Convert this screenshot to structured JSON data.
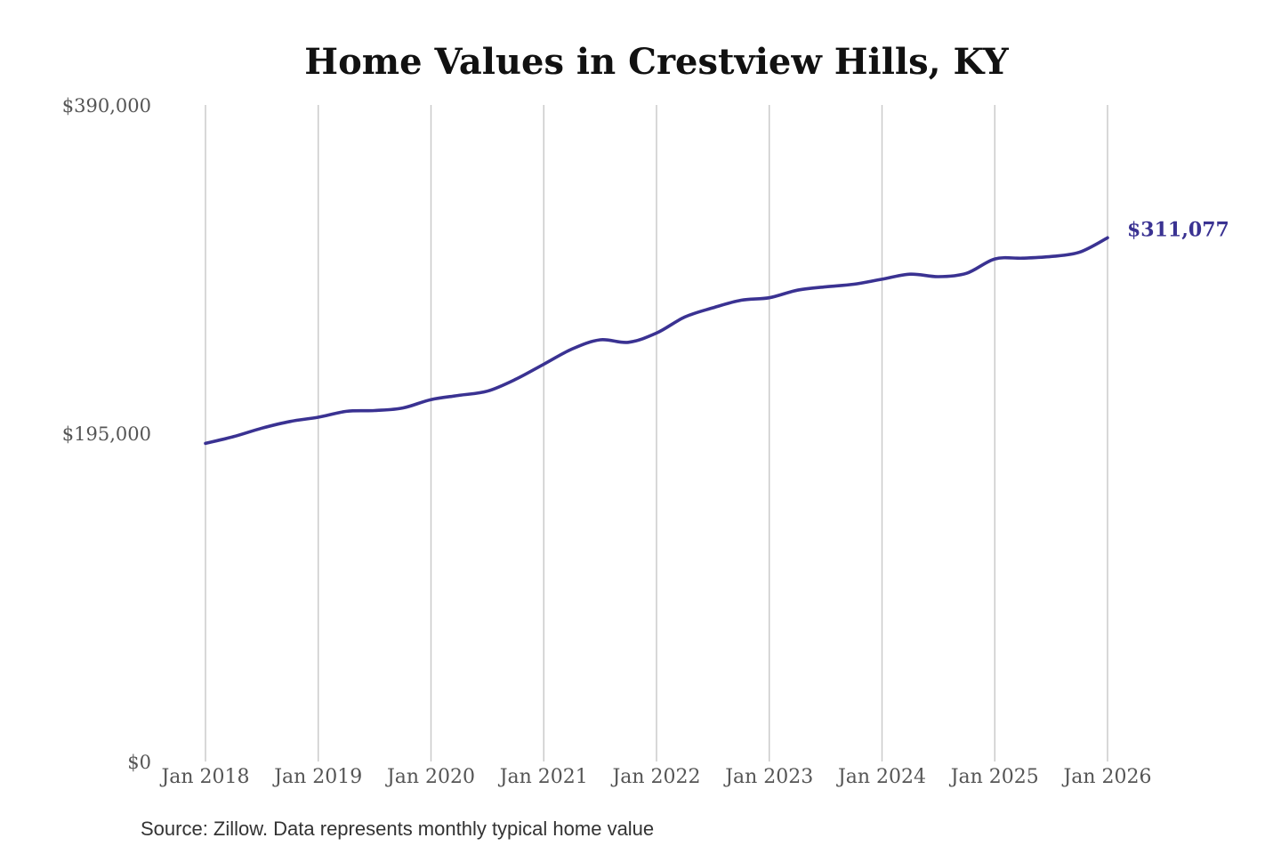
{
  "colors": {
    "line": "#3a3292",
    "grid": "#c8c8c8",
    "text": "#555555"
  },
  "chart_data": {
    "type": "line",
    "title": "Home Values in Crestview Hills, KY",
    "xlabel": "",
    "ylabel": "",
    "y_ticks": [
      {
        "value": 0,
        "label": "$0"
      },
      {
        "value": 195000,
        "label": "$195,000"
      },
      {
        "value": 390000,
        "label": "$390,000"
      }
    ],
    "ylim": [
      0,
      390000
    ],
    "x_ticks": [
      {
        "value": "2018-01",
        "label": "Jan 2018"
      },
      {
        "value": "2019-01",
        "label": "Jan 2019"
      },
      {
        "value": "2020-01",
        "label": "Jan 2020"
      },
      {
        "value": "2021-01",
        "label": "Jan 2021"
      },
      {
        "value": "2022-01",
        "label": "Jan 2022"
      },
      {
        "value": "2023-01",
        "label": "Jan 2023"
      },
      {
        "value": "2024-01",
        "label": "Jan 2024"
      },
      {
        "value": "2025-01",
        "label": "Jan 2025"
      },
      {
        "value": "2026-01",
        "label": "Jan 2026"
      }
    ],
    "xlim": [
      "2018-01",
      "2026-01"
    ],
    "grid": {
      "vertical": true,
      "horizontal": false
    },
    "series": [
      {
        "x": [
          "2018-01",
          "2018-04",
          "2018-07",
          "2018-10",
          "2019-01",
          "2019-04",
          "2019-07",
          "2019-10",
          "2020-01",
          "2020-04",
          "2020-07",
          "2020-10",
          "2021-01",
          "2021-04",
          "2021-07",
          "2021-10",
          "2022-01",
          "2022-04",
          "2022-07",
          "2022-10",
          "2023-01",
          "2023-04",
          "2023-07",
          "2023-10",
          "2024-01",
          "2024-04",
          "2024-07",
          "2024-10",
          "2025-01",
          "2025-04",
          "2025-07",
          "2025-10",
          "2026-01"
        ],
        "values": [
          189000,
          193000,
          198000,
          202000,
          204500,
          208000,
          208500,
          210000,
          215000,
          217500,
          220000,
          227000,
          236000,
          245000,
          250500,
          249000,
          254500,
          264000,
          269500,
          274000,
          275500,
          280000,
          282000,
          283500,
          286500,
          289500,
          288000,
          290000,
          298500,
          299000,
          300000,
          302500,
          311077
        ]
      }
    ],
    "end_label": "$311,077",
    "source": "Source: Zillow. Data represents monthly typical home value"
  }
}
